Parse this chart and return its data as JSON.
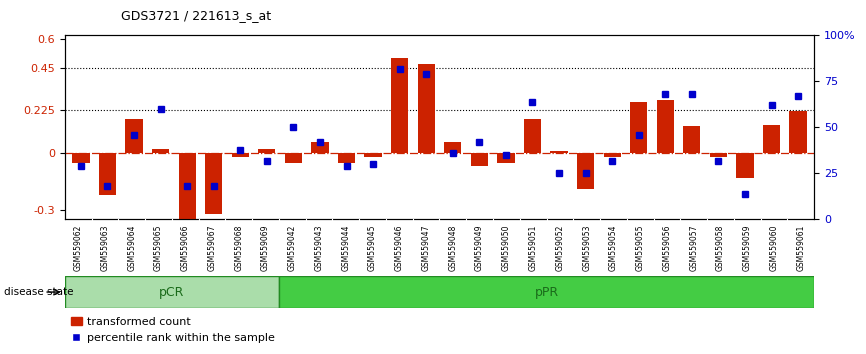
{
  "title": "GDS3721 / 221613_s_at",
  "samples": [
    "GSM559062",
    "GSM559063",
    "GSM559064",
    "GSM559065",
    "GSM559066",
    "GSM559067",
    "GSM559068",
    "GSM559069",
    "GSM559042",
    "GSM559043",
    "GSM559044",
    "GSM559045",
    "GSM559046",
    "GSM559047",
    "GSM559048",
    "GSM559049",
    "GSM559050",
    "GSM559051",
    "GSM559052",
    "GSM559053",
    "GSM559054",
    "GSM559055",
    "GSM559056",
    "GSM559057",
    "GSM559058",
    "GSM559059",
    "GSM559060",
    "GSM559061"
  ],
  "transformed_count": [
    -0.05,
    -0.22,
    0.18,
    0.02,
    -0.35,
    -0.32,
    -0.02,
    0.02,
    -0.05,
    0.06,
    -0.05,
    -0.02,
    0.5,
    0.47,
    0.06,
    -0.07,
    -0.05,
    0.18,
    0.01,
    -0.19,
    -0.02,
    0.27,
    0.28,
    0.14,
    -0.02,
    -0.13,
    0.15,
    0.22
  ],
  "percentile_rank": [
    29,
    18,
    46,
    60,
    18,
    18,
    38,
    32,
    50,
    42,
    29,
    30,
    82,
    79,
    36,
    42,
    35,
    64,
    25,
    25,
    32,
    46,
    68,
    68,
    32,
    14,
    62,
    67
  ],
  "pcr_count": 8,
  "ppr_count": 20,
  "ylim_left": [
    -0.35,
    0.62
  ],
  "ylim_right": [
    0,
    100
  ],
  "yticks_left": [
    -0.3,
    0.0,
    0.225,
    0.45,
    0.6
  ],
  "yticks_right": [
    0,
    25,
    50,
    75,
    100
  ],
  "hlines": [
    0.225,
    0.45
  ],
  "bar_color": "#cc2200",
  "dot_color": "#0000cc",
  "pcr_color": "#aaddaa",
  "ppr_color": "#44cc44",
  "label_bar": "transformed count",
  "label_dot": "percentile rank within the sample",
  "disease_state_label": "disease state",
  "pcr_label": "pCR",
  "ppr_label": "pPR",
  "bg_color": "#e8e8e8"
}
